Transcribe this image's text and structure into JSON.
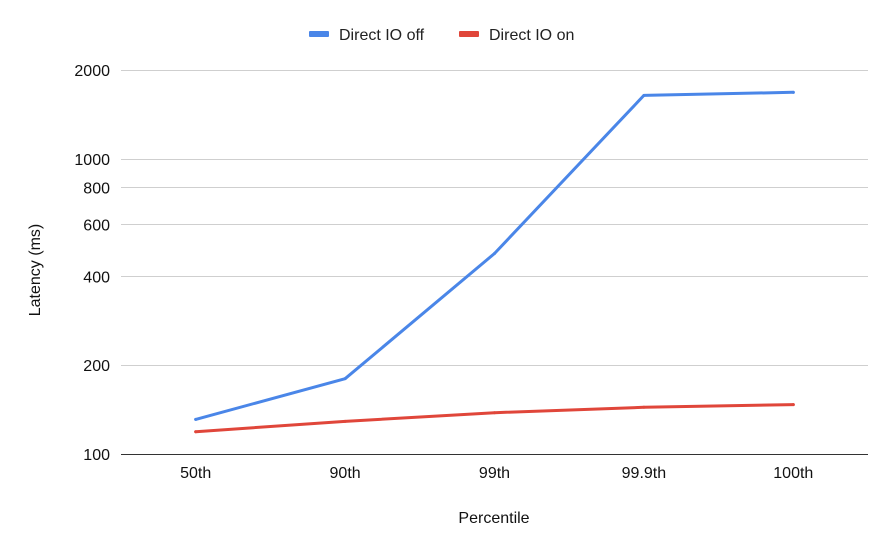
{
  "chart_data": {
    "type": "line",
    "title": "",
    "xlabel": "Percentile",
    "ylabel": "Latency (ms)",
    "y_scale": "log",
    "ylim": [
      100,
      2000
    ],
    "y_ticks": [
      100,
      200,
      400,
      600,
      800,
      1000,
      2000
    ],
    "categories": [
      "50th",
      "90th",
      "99th",
      "99.9th",
      "100th"
    ],
    "legend_position": "top-center",
    "grid": true,
    "series": [
      {
        "name": "Direct IO off",
        "color": "#4a86e8",
        "values": [
          131,
          180,
          478,
          1640,
          1680
        ]
      },
      {
        "name": "Direct IO on",
        "color": "#e0463a",
        "values": [
          119,
          129,
          138,
          144,
          147
        ]
      }
    ]
  }
}
